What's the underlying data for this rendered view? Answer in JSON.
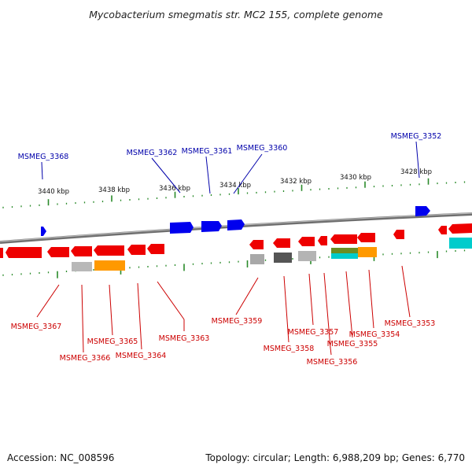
{
  "title": "Mycobacterium smegmatis str. MC2 155, complete genome",
  "footer": {
    "accession": "Accession: NC_008596",
    "summary": "Topology: circular; Length: 6,988,209 bp; Genes: 6,770"
  },
  "colors": {
    "forward_strand": "#0000ee",
    "reverse_strand": "#ee0000",
    "forward_label": "#0000aa",
    "reverse_label": "#cc0000",
    "backbone": "#8c8c8c",
    "tick": "#2a8a2a"
  },
  "upper_ruler": {
    "label": "3440 kbp ... 3428 kbp",
    "values": [
      "3440 kbp",
      "3438 kbp",
      "3436 kbp",
      "3434 kbp",
      "3432 kbp",
      "3430 kbp",
      "3428 kbp"
    ]
  },
  "upper_ticks": [
    "3440 kbp",
    "3438 kbp",
    "3436 kbp",
    "3434 kbp",
    "3432 kbp",
    "3430 kbp",
    "3428 kbp"
  ],
  "forward_genes": [
    "MSMEG_3368",
    "MSMEG_3362",
    "MSMEG_3361",
    "MSMEG_3360",
    "MSMEG_3352"
  ],
  "reverse_genes": [
    "MSMEG_3367",
    "MSMEG_3366",
    "MSMEG_3365",
    "MSMEG_3364",
    "MSMEG_3363",
    "MSMEG_3359",
    "MSMEG_3358",
    "MSMEG_3357",
    "MSMEG_3356",
    "MSMEG_3355",
    "MSMEG_3354",
    "MSMEG_3353"
  ]
}
